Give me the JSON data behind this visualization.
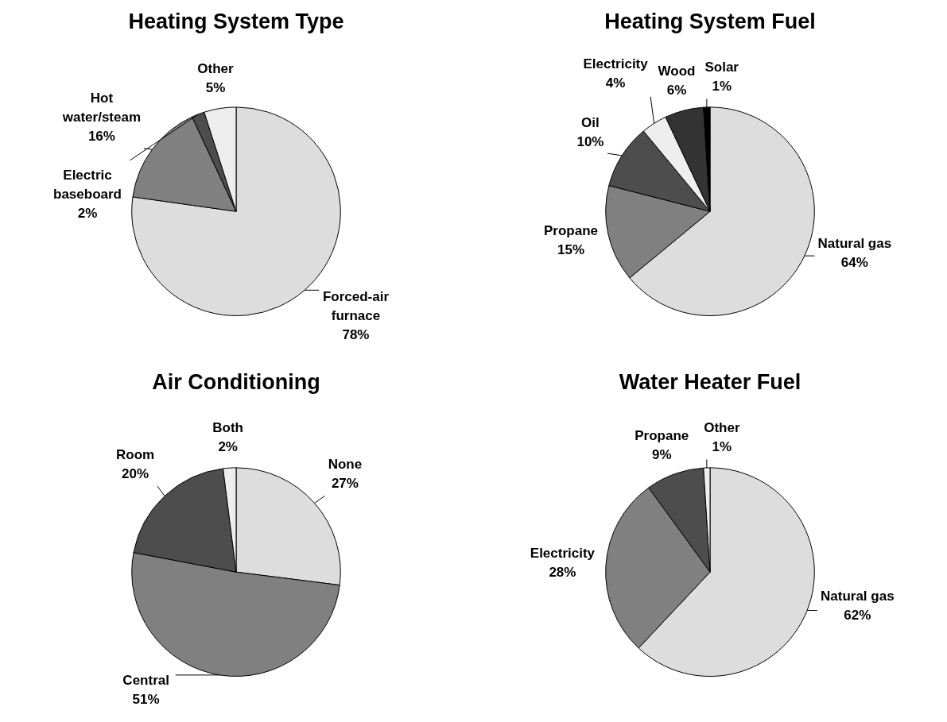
{
  "chart_data": [
    {
      "type": "pie",
      "title": "Heating System Type",
      "categories": [
        "Forced-air furnace",
        "Hot water/steam",
        "Electric baseboard",
        "Other"
      ],
      "values": [
        78,
        16,
        2,
        5
      ],
      "value_labels": [
        "78%",
        "16%",
        "2%",
        "5%"
      ],
      "colors": [
        "#dddddd",
        "#808080",
        "#4d4d4d",
        "#eeeeee"
      ],
      "legend": false
    },
    {
      "type": "pie",
      "title": "Heating System Fuel",
      "categories": [
        "Natural gas",
        "Propane",
        "Oil",
        "Electricity",
        "Wood",
        "Solar"
      ],
      "values": [
        64,
        15,
        10,
        4,
        6,
        1
      ],
      "value_labels": [
        "64%",
        "15%",
        "10%",
        "4%",
        "6%",
        "1%"
      ],
      "colors": [
        "#dddddd",
        "#808080",
        "#4d4d4d",
        "#eeeeee",
        "#333333",
        "#000000"
      ],
      "legend": false
    },
    {
      "type": "pie",
      "title": "Air Conditioning",
      "categories": [
        "None",
        "Central",
        "Room",
        "Both"
      ],
      "values": [
        27,
        51,
        20,
        2
      ],
      "value_labels": [
        "27%",
        "51%",
        "20%",
        "2%"
      ],
      "colors": [
        "#dddddd",
        "#808080",
        "#4d4d4d",
        "#eeeeee"
      ],
      "legend": false
    },
    {
      "type": "pie",
      "title": "Water Heater Fuel",
      "categories": [
        "Natural gas",
        "Electricity",
        "Propane",
        "Other"
      ],
      "values": [
        62,
        28,
        9,
        1
      ],
      "value_labels": [
        "62%",
        "28%",
        "9%",
        "1%"
      ],
      "colors": [
        "#dddddd",
        "#808080",
        "#4d4d4d",
        "#eeeeee"
      ],
      "legend": false
    }
  ]
}
